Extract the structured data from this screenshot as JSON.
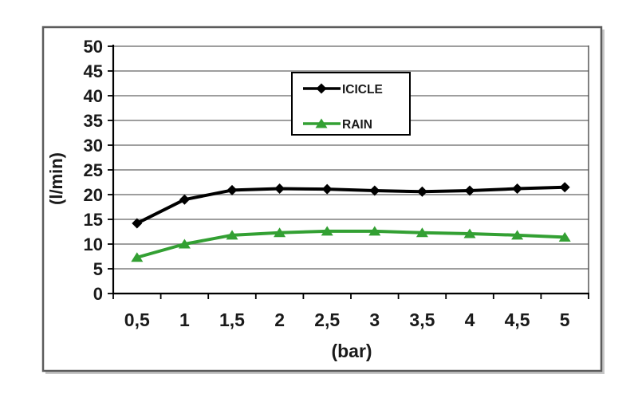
{
  "chart_data": {
    "type": "line",
    "title": "",
    "xlabel": "(bar)",
    "ylabel": "(l/min)",
    "x_tick_labels": [
      "0,5",
      "1",
      "1,5",
      "2",
      "2,5",
      "3",
      "3,5",
      "4",
      "4,5",
      "5"
    ],
    "x_values": [
      0.5,
      1,
      1.5,
      2,
      2.5,
      3,
      3.5,
      4,
      4.5,
      5
    ],
    "ylim": [
      0,
      50
    ],
    "y_tick_step": 5,
    "grid": "horizontal",
    "legend_position": "upper-center",
    "series": [
      {
        "name": "ICICLE",
        "color": "#000000",
        "marker": "diamond",
        "values": [
          14.2,
          19.0,
          20.9,
          21.2,
          21.1,
          20.8,
          20.6,
          20.8,
          21.2,
          21.5
        ]
      },
      {
        "name": "RAIN",
        "color": "#33a033",
        "marker": "triangle",
        "values": [
          7.3,
          10.0,
          11.8,
          12.3,
          12.6,
          12.6,
          12.3,
          12.1,
          11.8,
          11.4
        ]
      }
    ],
    "colors": {
      "gridline": "#7f7f7f",
      "axis": "#000000",
      "frame_border": "#5c5c5c",
      "legend_border": "#000000",
      "text": "#1a1a1a"
    }
  }
}
